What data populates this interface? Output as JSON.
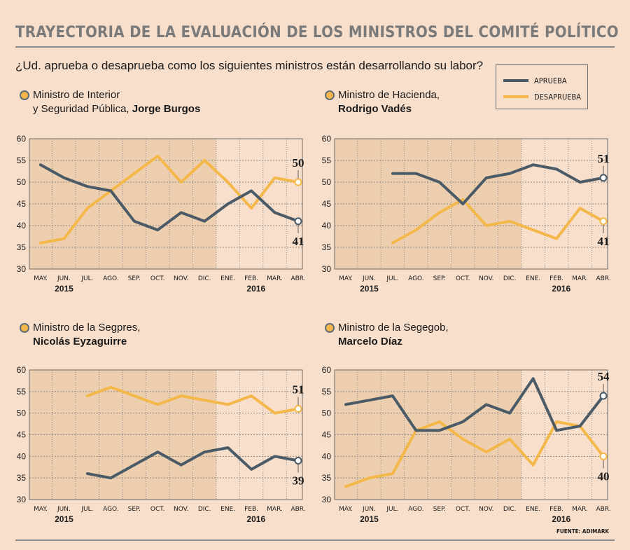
{
  "title": "TRAYECTORIA DE LA EVALUACIÓN DE LOS MINISTROS DEL COMITÉ POLÍTICO",
  "subtitle": "¿Ud. aprueba o desaprueba como los siguientes ministros están desarrollando su labor?",
  "source": "FUENTE: ADIMARK",
  "colors": {
    "aprueba": "#4a5a66",
    "desaprueba": "#f4b74a",
    "shade": "#edcfaf",
    "background": "#f8dfcc"
  },
  "legend": [
    {
      "label": "APRUEBA",
      "color": "#4a5a66"
    },
    {
      "label": "DESAPRUEBA",
      "color": "#f4b74a"
    }
  ],
  "panels": [
    {
      "line1": "Ministro de Interior",
      "line2_prefix": "y Seguridad Pública, ",
      "line2_bold": "Jorge Burgos",
      "line1_bold": ""
    },
    {
      "line1": "Ministro de Hacienda,",
      "line2_prefix": "",
      "line2_bold": "Rodrigo Vadés",
      "line1_bold": ""
    },
    {
      "line1": "Ministro de la Segpres,",
      "line2_prefix": "",
      "line2_bold": "Nicolás Eyzaguirre",
      "line1_bold": ""
    },
    {
      "line1": "Ministro de la Segegob,",
      "line2_prefix": "",
      "line2_bold": "Marcelo Díaz",
      "line1_bold": ""
    }
  ],
  "chart_data": [
    {
      "type": "line",
      "title": "Ministro de Interior y Seguridad Pública, Jorge Burgos",
      "categories": [
        "MAY.",
        "JUN.",
        "JUL.",
        "AGO.",
        "SEP.",
        "OCT.",
        "NOV.",
        "DIC.",
        "ENE.",
        "FEB.",
        "MAR.",
        "ABR."
      ],
      "year_labels": [
        {
          "label": "2015",
          "at": "JUN."
        },
        {
          "label": "2016",
          "at": "FEB."
        }
      ],
      "shaded_range": [
        "MAY.",
        "DIC."
      ],
      "ylim": [
        30,
        60
      ],
      "yticks": [
        30,
        35,
        40,
        45,
        50,
        55,
        60
      ],
      "series": [
        {
          "name": "APRUEBA",
          "values": [
            54,
            51,
            49,
            48,
            41,
            39,
            43,
            41,
            45,
            48,
            43,
            41
          ],
          "end_label": "41",
          "label_pos": "below"
        },
        {
          "name": "DESAPRUEBA",
          "values": [
            36,
            37,
            44,
            48,
            52,
            56,
            50,
            55,
            50,
            44,
            51,
            50
          ],
          "end_label": "50",
          "label_pos": "above"
        }
      ]
    },
    {
      "type": "line",
      "title": "Ministro de Hacienda, Rodrigo Vadés",
      "categories": [
        "MAY.",
        "JUN.",
        "JUL.",
        "AGO.",
        "SEP.",
        "OCT.",
        "NOV.",
        "DIC.",
        "ENE.",
        "FEB.",
        "MAR.",
        "ABR."
      ],
      "year_labels": [
        {
          "label": "2015",
          "at": "JUN."
        },
        {
          "label": "2016",
          "at": "FEB."
        }
      ],
      "shaded_range": [
        "MAY.",
        "DIC."
      ],
      "ylim": [
        30,
        60
      ],
      "yticks": [
        30,
        35,
        40,
        45,
        50,
        55,
        60
      ],
      "series": [
        {
          "name": "APRUEBA",
          "values": [
            null,
            null,
            52,
            52,
            50,
            45,
            51,
            52,
            54,
            53,
            50,
            51
          ],
          "end_label": "51",
          "label_pos": "above"
        },
        {
          "name": "DESAPRUEBA",
          "values": [
            null,
            null,
            36,
            39,
            43,
            46,
            40,
            41,
            39,
            37,
            44,
            41
          ],
          "end_label": "41",
          "label_pos": "below"
        }
      ]
    },
    {
      "type": "line",
      "title": "Ministro de la Segpres, Nicolás Eyzaguirre",
      "categories": [
        "MAY.",
        "JUN.",
        "JUL.",
        "AGO.",
        "SEP.",
        "OCT.",
        "NOV.",
        "DIC.",
        "ENE.",
        "FEB.",
        "MAR.",
        "ABR."
      ],
      "year_labels": [
        {
          "label": "2015",
          "at": "JUN."
        },
        {
          "label": "2016",
          "at": "FEB."
        }
      ],
      "shaded_range": [
        "MAY.",
        "DIC."
      ],
      "ylim": [
        30,
        60
      ],
      "yticks": [
        30,
        35,
        40,
        45,
        50,
        55,
        60
      ],
      "series": [
        {
          "name": "APRUEBA",
          "values": [
            null,
            null,
            36,
            35,
            38,
            41,
            38,
            41,
            42,
            37,
            40,
            39
          ],
          "end_label": "39",
          "label_pos": "below"
        },
        {
          "name": "DESAPRUEBA",
          "values": [
            null,
            null,
            54,
            56,
            54,
            52,
            54,
            53,
            52,
            54,
            50,
            51
          ],
          "end_label": "51",
          "label_pos": "above"
        }
      ]
    },
    {
      "type": "line",
      "title": "Ministro de la Segegob, Marcelo Díaz",
      "categories": [
        "MAY.",
        "JUN.",
        "JUL.",
        "AGO.",
        "SEP.",
        "OCT.",
        "NOV.",
        "DIC.",
        "ENE.",
        "FEB.",
        "MAR.",
        "ABR."
      ],
      "year_labels": [
        {
          "label": "2015",
          "at": "JUN."
        },
        {
          "label": "2016",
          "at": "FEB."
        }
      ],
      "shaded_range": [
        "MAY.",
        "DIC."
      ],
      "ylim": [
        30,
        60
      ],
      "yticks": [
        30,
        35,
        40,
        45,
        50,
        55,
        60
      ],
      "series": [
        {
          "name": "APRUEBA",
          "values": [
            52,
            53,
            54,
            46,
            46,
            48,
            52,
            50,
            58,
            46,
            47,
            54
          ],
          "end_label": "54",
          "label_pos": "above"
        },
        {
          "name": "DESAPRUEBA",
          "values": [
            33,
            35,
            36,
            46,
            48,
            44,
            41,
            44,
            38,
            48,
            47,
            40
          ],
          "end_label": "40",
          "label_pos": "below"
        }
      ]
    }
  ]
}
